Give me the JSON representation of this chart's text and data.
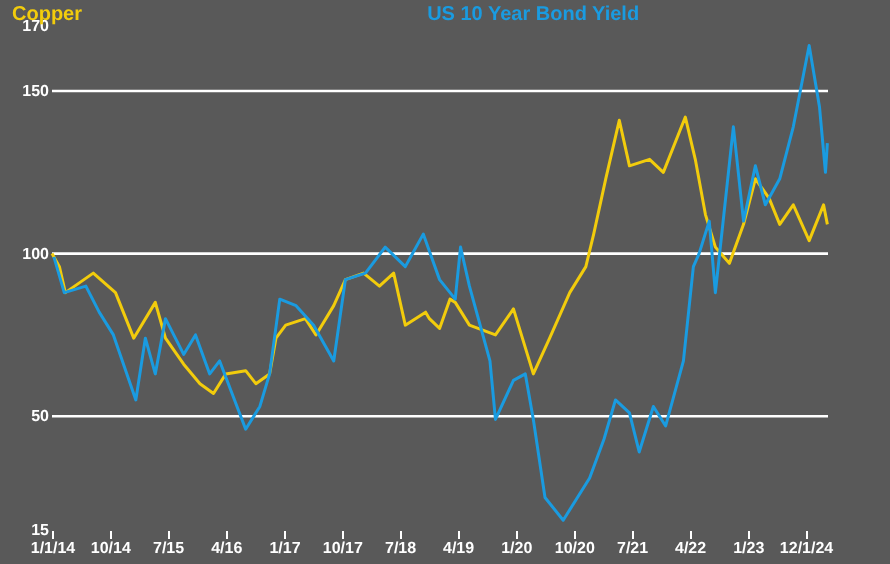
{
  "chart_data": {
    "type": "line",
    "series": [
      {
        "name": "Copper",
        "color": "#f2cc0c",
        "x": [
          "2014-01-01",
          "2014-02-05",
          "2014-03-05",
          "2014-07-15",
          "2014-10-28",
          "2015-01-22",
          "2015-05-04",
          "2015-06-21",
          "2015-09-15",
          "2015-12-01",
          "2016-02-03",
          "2016-04-01",
          "2016-07-04",
          "2016-08-21",
          "2016-10-25",
          "2016-11-24",
          "2017-01-09",
          "2017-04-12",
          "2017-06-01",
          "2017-08-24",
          "2017-10-18",
          "2018-01-12",
          "2018-03-28",
          "2018-06-03",
          "2018-07-28",
          "2018-11-01",
          "2018-11-19",
          "2019-01-06",
          "2019-02-24",
          "2019-03-21",
          "2019-05-27",
          "2019-09-27",
          "2019-12-21",
          "2020-03-24",
          "2020-06-09",
          "2020-09-12",
          "2020-11-27",
          "2021-01-03",
          "2021-03-01",
          "2021-05-04",
          "2021-06-21",
          "2021-09-24",
          "2021-11-28",
          "2022-03-12",
          "2022-04-28",
          "2022-06-15",
          "2022-08-01",
          "2022-10-06",
          "2022-12-12",
          "2023-02-06",
          "2023-04-12",
          "2023-06-01",
          "2023-08-04",
          "2023-10-18",
          "2023-12-25",
          "2024-01-12"
        ],
        "values": [
          100,
          96,
          88,
          94,
          88,
          74,
          85,
          74,
          66,
          60,
          57,
          63,
          64,
          60,
          63,
          74,
          78,
          80,
          75,
          84,
          92,
          94,
          90,
          94,
          78,
          82,
          80,
          77,
          86,
          85,
          78,
          75,
          83,
          63,
          74,
          88,
          96,
          106,
          123,
          141,
          127,
          129,
          125,
          142,
          129,
          112,
          102,
          97,
          109,
          123,
          117,
          109,
          115,
          104,
          115,
          109
        ]
      },
      {
        "name": "US 10 Year Bond Yield",
        "color": "#1a9be0",
        "x": [
          "2014-01-10",
          "2014-02-28",
          "2014-06-10",
          "2014-08-12",
          "2014-10-18",
          "2015-02-01",
          "2015-03-18",
          "2015-05-04",
          "2015-06-21",
          "2015-09-15",
          "2015-11-10",
          "2016-01-16",
          "2016-03-03",
          "2016-07-04",
          "2016-09-09",
          "2016-10-25",
          "2016-12-12",
          "2017-02-27",
          "2017-05-21",
          "2017-08-24",
          "2017-10-18",
          "2018-01-21",
          "2018-04-24",
          "2018-07-28",
          "2018-10-21",
          "2019-01-06",
          "2019-03-21",
          "2019-04-15",
          "2019-05-27",
          "2019-09-01",
          "2019-09-27",
          "2019-12-21",
          "2020-02-15",
          "2020-03-24",
          "2020-05-18",
          "2020-08-12",
          "2020-12-15",
          "2021-02-21",
          "2021-04-16",
          "2021-06-21",
          "2021-08-06",
          "2021-10-12",
          "2021-12-09",
          "2022-03-03",
          "2022-04-19",
          "2022-05-16",
          "2022-07-03",
          "2022-08-01",
          "2022-10-25",
          "2022-12-12",
          "2023-02-06",
          "2023-03-25",
          "2023-06-01",
          "2023-08-04",
          "2023-10-18",
          "2023-12-06",
          "2024-01-03",
          "2024-01-12"
        ],
        "values": [
          99,
          88,
          90,
          82,
          75,
          55,
          74,
          63,
          80,
          69,
          75,
          63,
          67,
          46,
          53,
          63,
          86,
          84,
          78,
          67,
          92,
          94,
          102,
          96,
          106,
          92,
          86,
          102,
          90,
          67,
          49,
          61,
          63,
          49,
          25,
          18,
          31,
          43,
          55,
          51,
          39,
          53,
          47,
          67,
          96,
          100,
          110,
          88,
          139,
          110,
          127,
          115,
          123,
          139,
          164,
          145,
          125,
          134
        ]
      }
    ],
    "xlim": [
      "2014-01-01",
      "2024-01-15"
    ],
    "xticks": [
      {
        "value": "2014-01-01",
        "label": "1/1/14"
      },
      {
        "value": "2014-10-01",
        "label": "10/14"
      },
      {
        "value": "2015-07-01",
        "label": "7/15"
      },
      {
        "value": "2016-04-01",
        "label": "4/16"
      },
      {
        "value": "2017-01-01",
        "label": "1/17"
      },
      {
        "value": "2017-10-01",
        "label": "10/17"
      },
      {
        "value": "2018-07-01",
        "label": "7/18"
      },
      {
        "value": "2019-04-01",
        "label": "4/19"
      },
      {
        "value": "2020-01-01",
        "label": "1/20"
      },
      {
        "value": "2020-10-01",
        "label": "10/20"
      },
      {
        "value": "2021-07-01",
        "label": "7/21"
      },
      {
        "value": "2022-04-01",
        "label": "4/22"
      },
      {
        "value": "2023-01-01",
        "label": "1/23"
      },
      {
        "value": "2023-10-01",
        "label": "12/1/24"
      }
    ],
    "ylim": [
      15,
      170
    ],
    "yticks": [
      15,
      50,
      100,
      150,
      170
    ],
    "grid": "y",
    "legend": "top",
    "line_style": "solid"
  }
}
